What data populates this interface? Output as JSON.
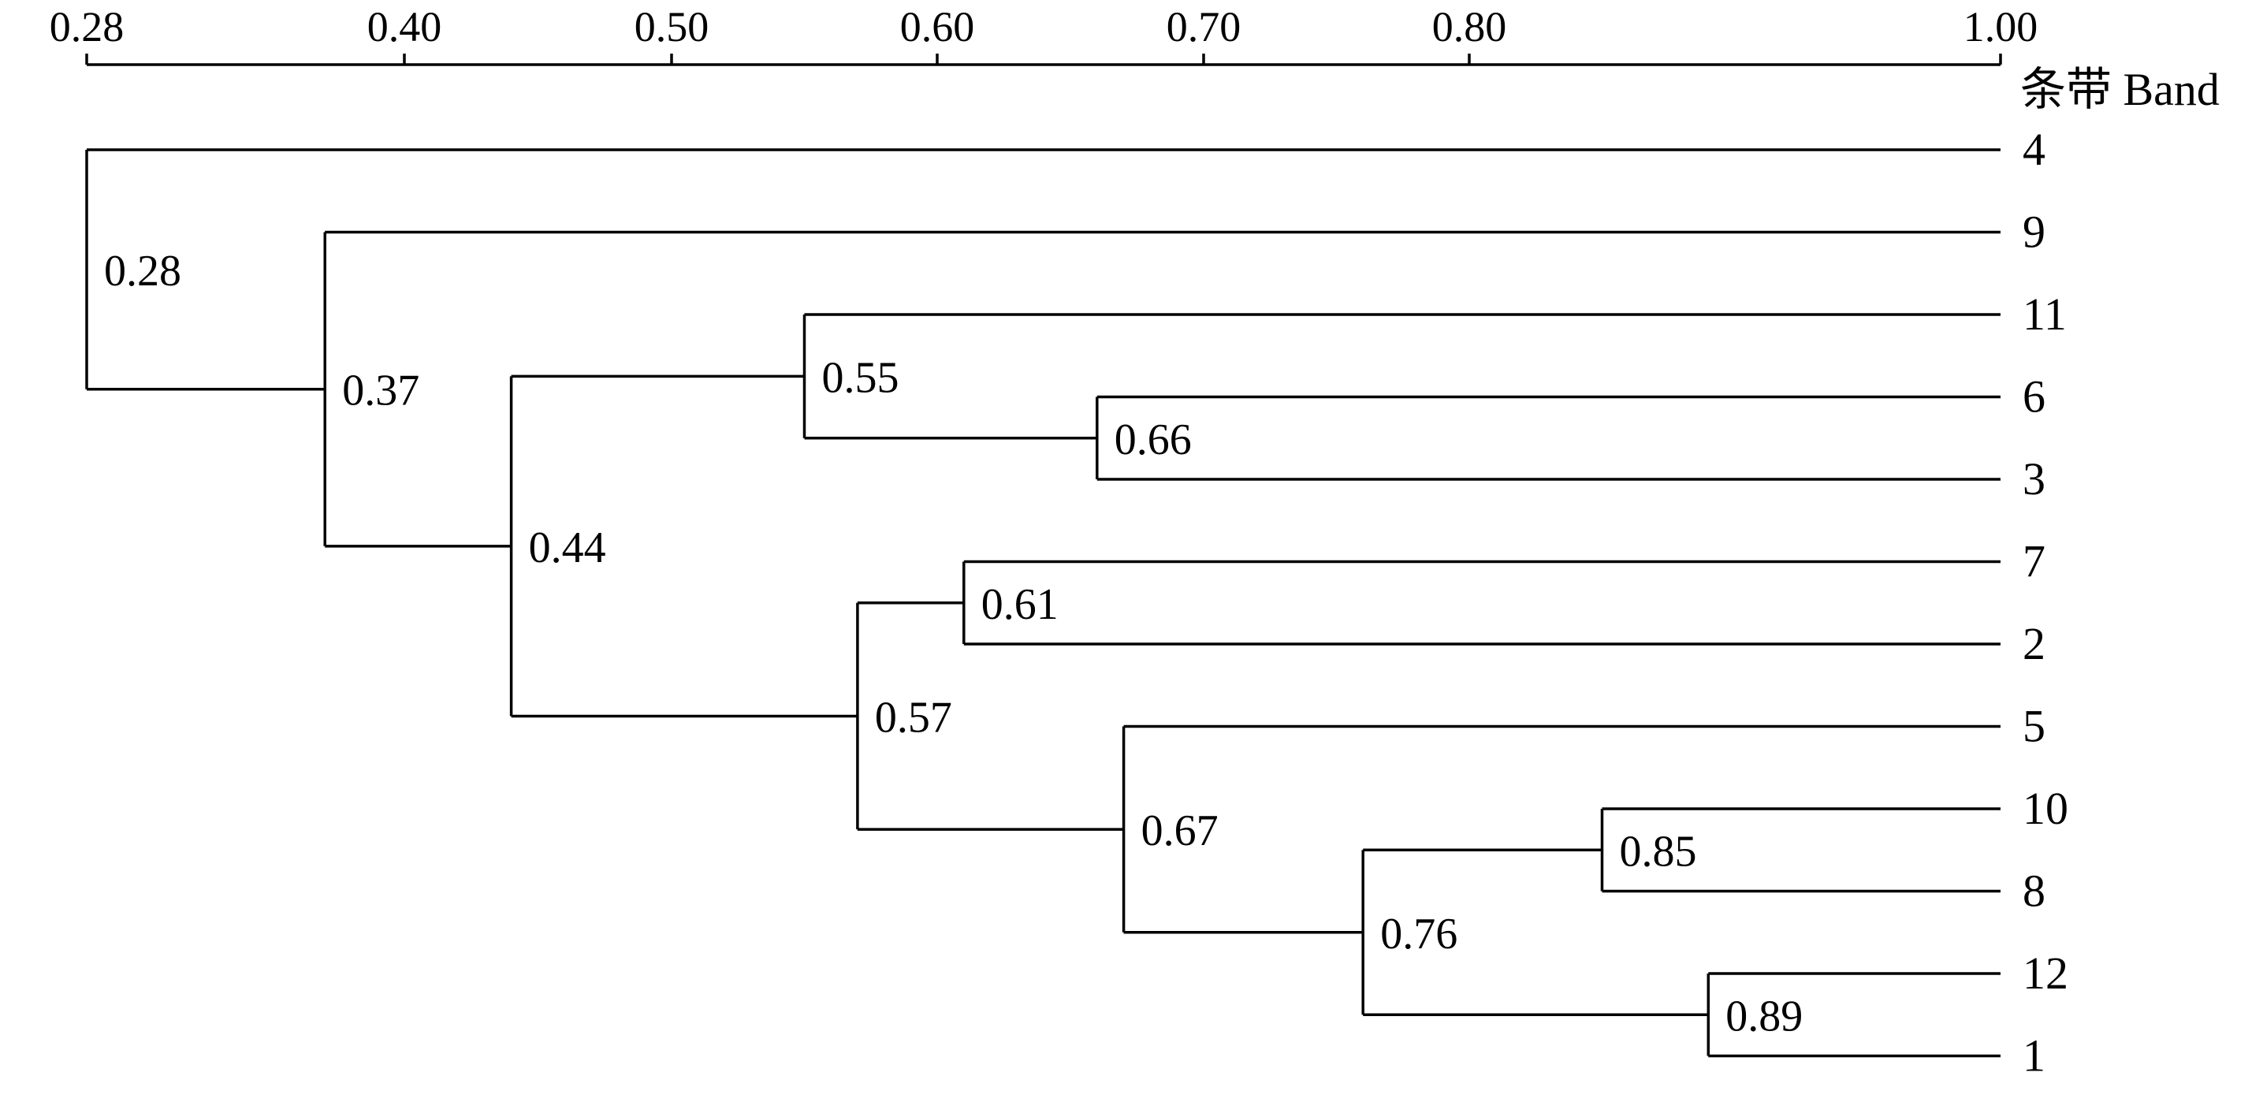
{
  "chart_data": {
    "type": "dendrogram",
    "axis": {
      "ticks": [
        "0.28",
        "0.40",
        "0.50",
        "0.60",
        "0.70",
        "0.80",
        "1.00"
      ],
      "tick_values": [
        0.28,
        0.4,
        0.5,
        0.6,
        0.7,
        0.8,
        1.0
      ],
      "range": [
        0.28,
        1.0
      ],
      "title": "条带 Band"
    },
    "leaves": [
      "4",
      "9",
      "11",
      "6",
      "3",
      "7",
      "2",
      "5",
      "10",
      "8",
      "12",
      "1"
    ],
    "nodes": [
      {
        "id": "n066",
        "label": "0.66",
        "similarity": 0.66,
        "children": [
          "6",
          "3"
        ]
      },
      {
        "id": "n055",
        "label": "0.55",
        "similarity": 0.55,
        "children": [
          "11",
          "n066"
        ]
      },
      {
        "id": "n061",
        "label": "0.61",
        "similarity": 0.61,
        "children": [
          "7",
          "2"
        ]
      },
      {
        "id": "n085",
        "label": "0.85",
        "similarity": 0.85,
        "children": [
          "10",
          "8"
        ]
      },
      {
        "id": "n089",
        "label": "0.89",
        "similarity": 0.89,
        "children": [
          "12",
          "1"
        ]
      },
      {
        "id": "n076",
        "label": "0.76",
        "similarity": 0.76,
        "children": [
          "n085",
          "n089"
        ]
      },
      {
        "id": "n067",
        "label": "0.67",
        "similarity": 0.67,
        "children": [
          "5",
          "n076"
        ]
      },
      {
        "id": "n057",
        "label": "0.57",
        "similarity": 0.57,
        "children": [
          "n061",
          "n067"
        ]
      },
      {
        "id": "n044",
        "label": "0.44",
        "similarity": 0.44,
        "children": [
          "n055",
          "n057"
        ]
      },
      {
        "id": "n037",
        "label": "0.37",
        "similarity": 0.37,
        "children": [
          "9",
          "n044"
        ]
      },
      {
        "id": "n028",
        "label": "0.28",
        "similarity": 0.28,
        "children": [
          "4",
          "n037"
        ]
      }
    ]
  }
}
